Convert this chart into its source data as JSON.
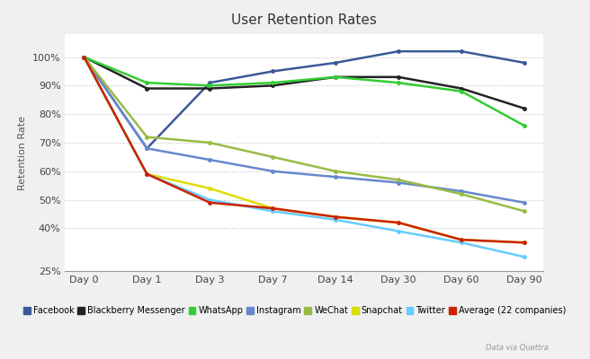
{
  "title": "User Retention Rates",
  "ylabel": "Retention Rate",
  "days": [
    "Day 0",
    "Day 1",
    "Day 3",
    "Day 7",
    "Day 14",
    "Day 30",
    "Day 60",
    "Day 90"
  ],
  "x_positions": [
    0,
    1,
    2,
    3,
    4,
    5,
    6,
    7
  ],
  "series": [
    {
      "label": "Facebook",
      "color": "#3b5998",
      "values": [
        100,
        68,
        91,
        95,
        98,
        102,
        102,
        98
      ]
    },
    {
      "label": "Blackberry Messenger",
      "color": "#222222",
      "values": [
        100,
        89,
        89,
        90,
        93,
        93,
        89,
        82
      ]
    },
    {
      "label": "WhatsApp",
      "color": "#33cc33",
      "values": [
        100,
        91,
        90,
        91,
        93,
        91,
        88,
        76
      ]
    },
    {
      "label": "Instagram",
      "color": "#6688cc",
      "values": [
        100,
        68,
        64,
        60,
        58,
        56,
        53,
        49
      ]
    },
    {
      "label": "WeChat",
      "color": "#99bb44",
      "values": [
        100,
        72,
        70,
        65,
        60,
        57,
        52,
        46
      ]
    },
    {
      "label": "Snapchat",
      "color": "#dddd00",
      "values": [
        100,
        59,
        54,
        47,
        44,
        42,
        36,
        35
      ]
    },
    {
      "label": "Twitter",
      "color": "#66ccff",
      "values": [
        100,
        59,
        50,
        46,
        43,
        39,
        35,
        30
      ]
    },
    {
      "label": "Average (22 companies)",
      "color": "#cc2200",
      "values": [
        100,
        59,
        49,
        47,
        44,
        42,
        36,
        35
      ]
    }
  ],
  "ylim": [
    25,
    108
  ],
  "yticks": [
    25,
    40,
    50,
    60,
    70,
    80,
    90,
    100
  ],
  "ytick_labels": [
    "25%",
    "40%",
    "50%",
    "60%",
    "70%",
    "80%",
    "90%",
    "100%"
  ],
  "bg_color": "#f0f0f0",
  "plot_bg_color": "#ffffff",
  "grid_color": "#bbbbbb",
  "title_fontsize": 11,
  "axis_label_fontsize": 8,
  "tick_fontsize": 8,
  "legend_fontsize": 7,
  "line_width": 1.8
}
